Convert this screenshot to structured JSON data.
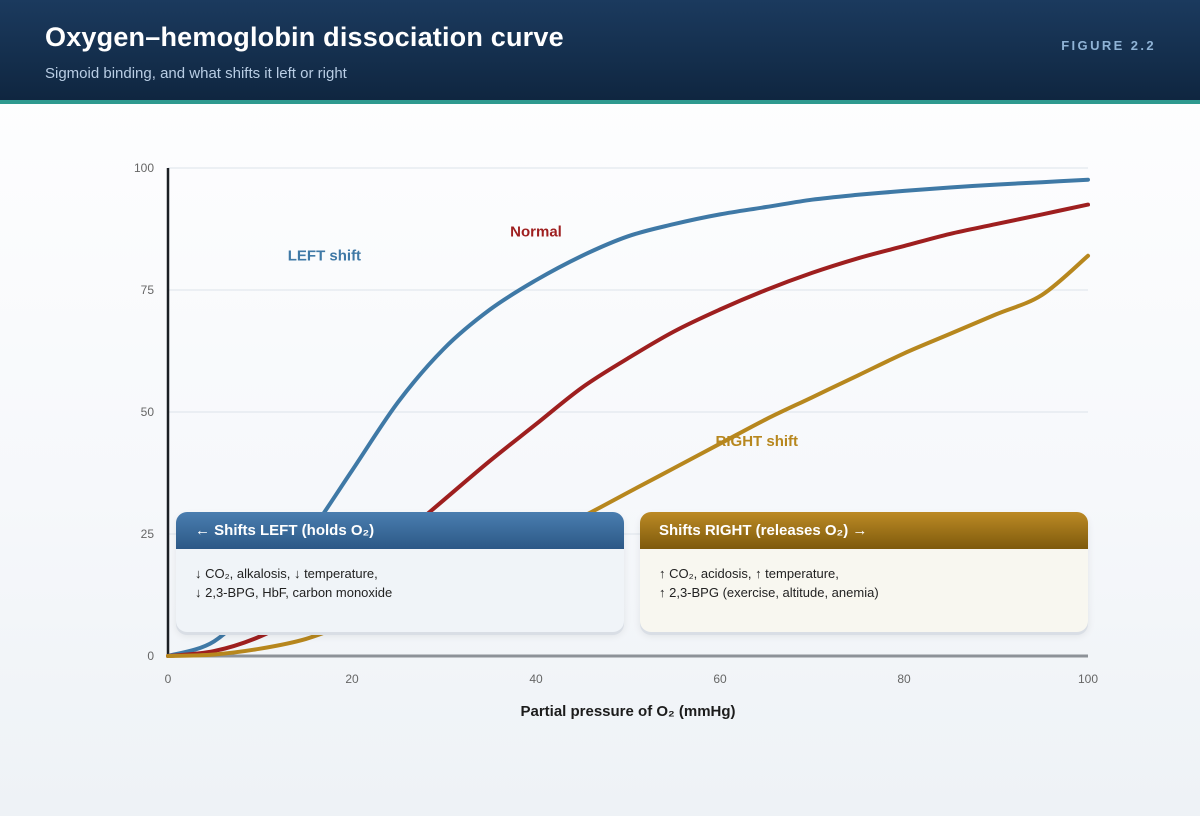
{
  "header": {
    "title": "Oxygen–hemoglobin dissociation curve",
    "subtitle": "Sigmoid binding, and what shifts it left or right",
    "figure_label": "FIGURE 2.2"
  },
  "cards": {
    "left": {
      "title": "← Shifts LEFT (holds O₂)",
      "lines": [
        "↓ CO₂, alkalosis, ↓ temperature,",
        "↓ 2,3-BPG, HbF, carbon monoxide"
      ]
    },
    "right": {
      "title": "Shifts RIGHT (releases O₂) →",
      "lines": [
        "↑ CO₂, acidosis, ↑ temperature,",
        "↑ 2,3-BPG (exercise, altitude, anemia)"
      ]
    }
  },
  "colors": {
    "left": "#3f79a6",
    "normal": "#9e1f1f",
    "right": "#b7871e",
    "header_bg": "#132d4c",
    "accent": "#2e9a8f"
  },
  "chart_data": {
    "type": "line",
    "xlabel": "Partial pressure of O₂ (mmHg)",
    "ylabel": "",
    "xlim": [
      0,
      100
    ],
    "ylim": [
      0,
      100
    ],
    "x_ticks": [
      0,
      20,
      40,
      60,
      80,
      100
    ],
    "y_ticks": [
      0,
      25,
      50,
      75,
      100
    ],
    "grid": true,
    "series": [
      {
        "name": "LEFT shift",
        "color": "#3f79a6",
        "x": [
          0,
          5,
          10,
          15,
          20,
          25,
          30,
          35,
          40,
          45,
          50,
          55,
          60,
          65,
          70,
          75,
          80,
          85,
          90,
          95,
          100
        ],
        "y": [
          0,
          3,
          12,
          24,
          38,
          52,
          63,
          71,
          77,
          82,
          86,
          88.5,
          90.5,
          92,
          93.5,
          94.5,
          95.3,
          96,
          96.6,
          97.1,
          97.6
        ]
      },
      {
        "name": "Normal",
        "color": "#9e1f1f",
        "x": [
          0,
          5,
          10,
          15,
          20,
          25,
          30,
          35,
          40,
          45,
          50,
          55,
          60,
          65,
          70,
          75,
          80,
          85,
          90,
          95,
          100
        ],
        "y": [
          0,
          1,
          4,
          9,
          16,
          24,
          32,
          40,
          47.5,
          55,
          61,
          66.5,
          71,
          75,
          78.5,
          81.5,
          84,
          86.5,
          88.5,
          90.5,
          92.5
        ]
      },
      {
        "name": "RIGHT shift",
        "color": "#b7871e",
        "x": [
          0,
          5,
          10,
          15,
          20,
          25,
          30,
          35,
          40,
          45,
          50,
          55,
          60,
          65,
          70,
          75,
          80,
          85,
          90,
          95,
          100
        ],
        "y": [
          0,
          0.3,
          1.5,
          3.5,
          7,
          11,
          15,
          19.5,
          24,
          28.5,
          33.5,
          38.5,
          43.5,
          48.5,
          53,
          57.5,
          62,
          66,
          70,
          74,
          82
        ]
      }
    ]
  }
}
